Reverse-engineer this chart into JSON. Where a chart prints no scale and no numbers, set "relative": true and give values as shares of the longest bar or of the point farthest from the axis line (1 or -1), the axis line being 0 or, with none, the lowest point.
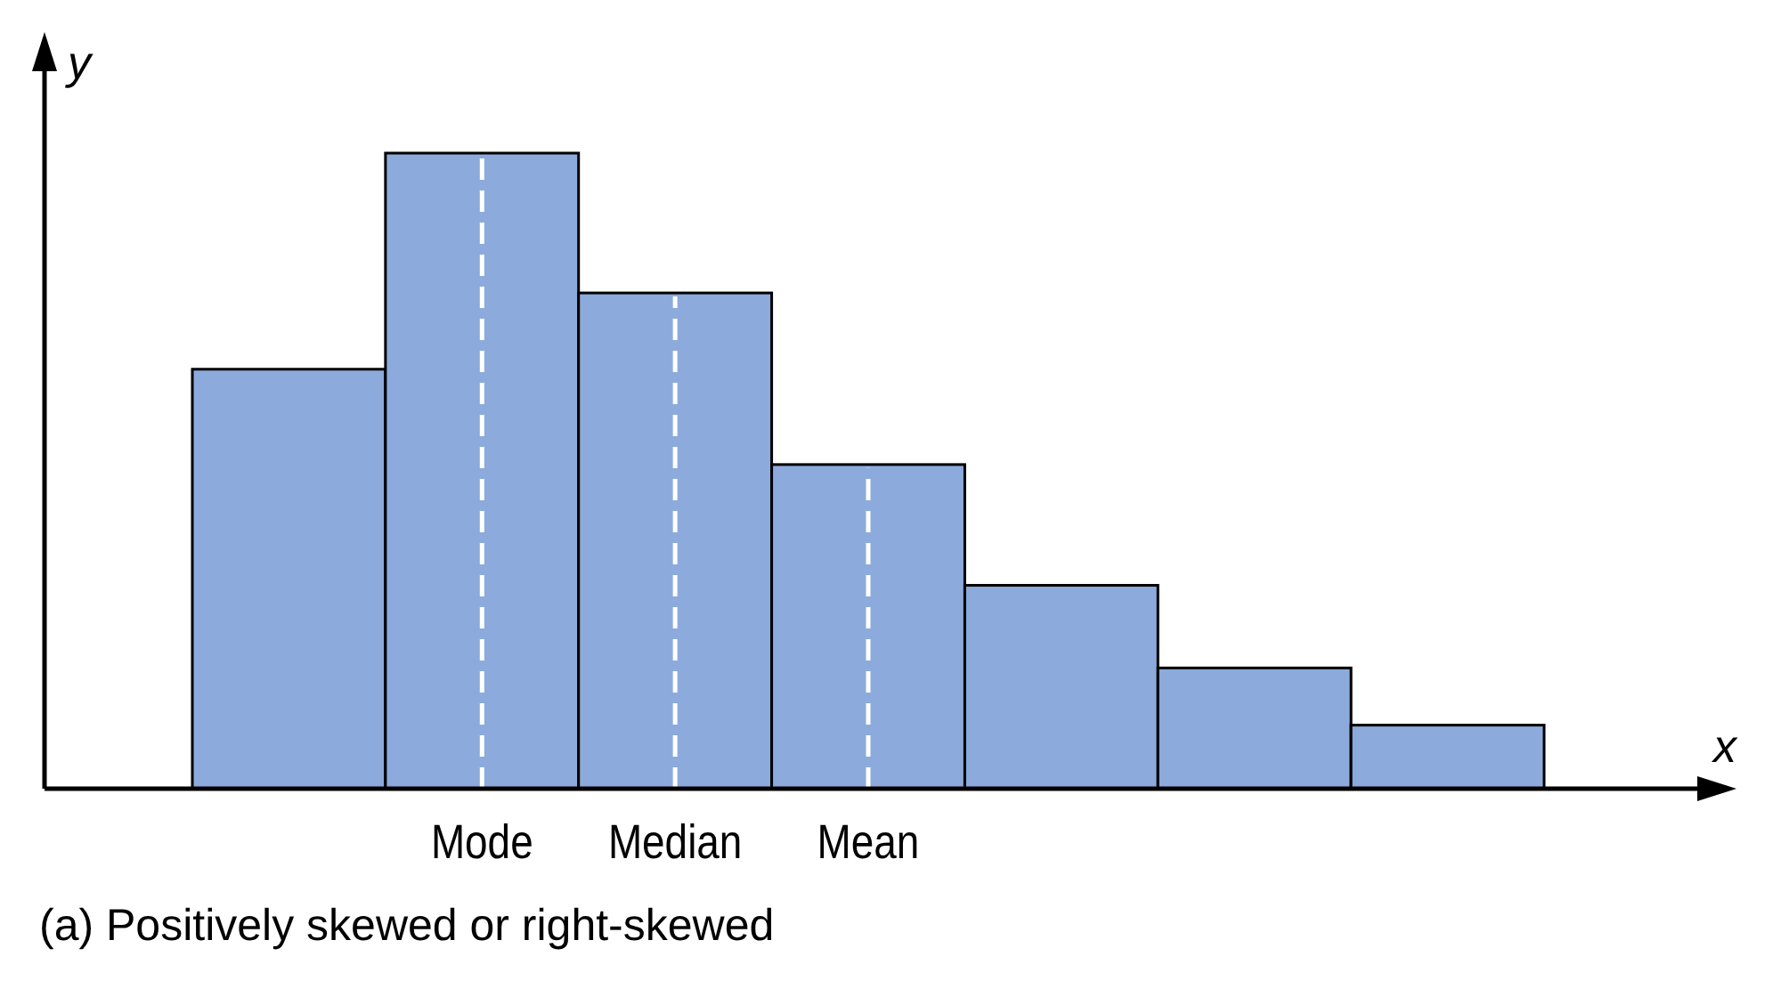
{
  "chart_data": {
    "type": "bar",
    "relative": true,
    "categories": [
      null,
      "Mode",
      "Median",
      "Mean",
      null,
      null,
      null
    ],
    "values": [
      0.66,
      1,
      0.78,
      0.51,
      0.32,
      0.19,
      0.1
    ],
    "color": "#8caadc",
    "xlabel": "x",
    "ylabel": "y",
    "ref_lines": [
      {
        "axis": "x",
        "value": "Mode",
        "color": "#ffffff",
        "line_style": "dashed"
      },
      {
        "axis": "x",
        "value": "Median",
        "color": "#ffffff",
        "line_style": "dashed"
      },
      {
        "axis": "x",
        "value": "Mean",
        "color": "#ffffff",
        "line_style": "dashed"
      }
    ],
    "annotations": [
      "(a) Positively skewed or right-skewed"
    ]
  }
}
